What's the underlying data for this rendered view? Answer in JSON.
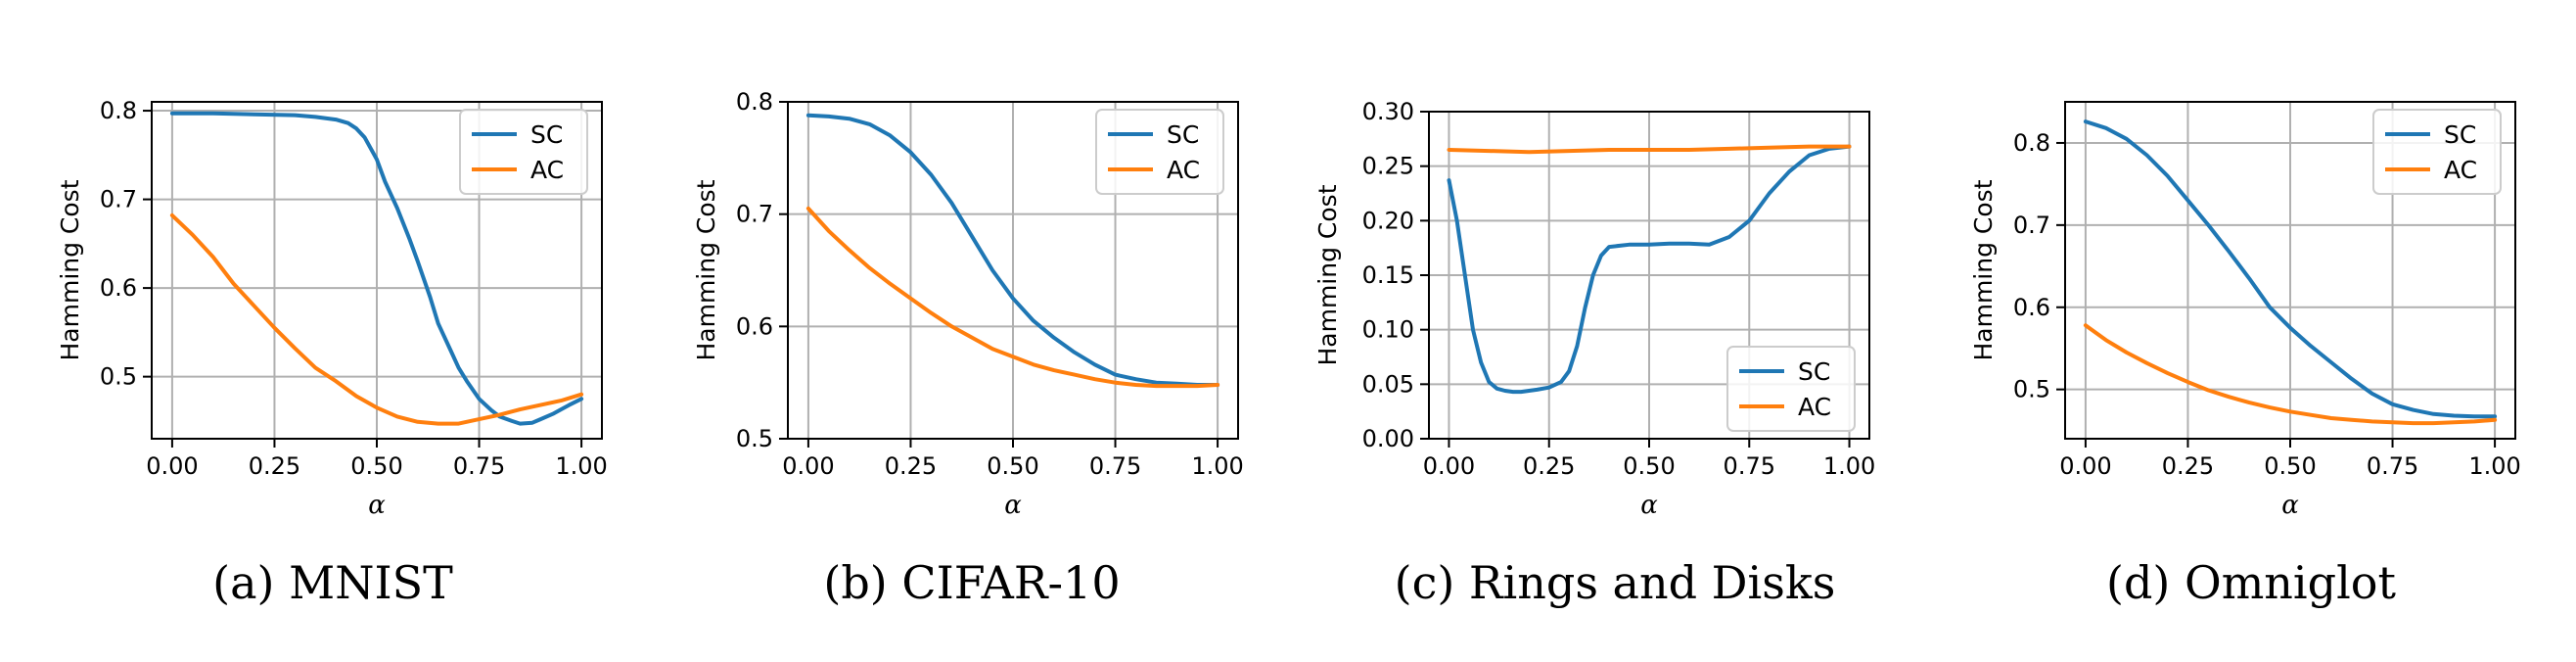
{
  "chart_data": [
    {
      "type": "line",
      "caption": "(a) MNIST",
      "xlabel": "α",
      "ylabel": "Hamming Cost",
      "xlim": [
        -0.05,
        1.05
      ],
      "ylim": [
        0.43,
        0.81
      ],
      "xticks": [
        0.0,
        0.25,
        0.5,
        0.75,
        1.0
      ],
      "xtick_labels": [
        "0.00",
        "0.25",
        "0.50",
        "0.75",
        "1.00"
      ],
      "yticks": [
        0.5,
        0.6,
        0.7,
        0.8
      ],
      "ytick_labels": [
        "0.5",
        "0.6",
        "0.7",
        "0.8"
      ],
      "grid": true,
      "legend": "upper right",
      "series": [
        {
          "name": "SC",
          "color": "#1f77b4",
          "x": [
            0,
            0.1,
            0.2,
            0.3,
            0.35,
            0.4,
            0.43,
            0.45,
            0.47,
            0.5,
            0.52,
            0.55,
            0.58,
            0.6,
            0.63,
            0.65,
            0.68,
            0.7,
            0.72,
            0.75,
            0.78,
            0.8,
            0.83,
            0.85,
            0.88,
            0.9,
            0.93,
            0.95,
            0.97,
            1.0
          ],
          "y": [
            0.797,
            0.797,
            0.796,
            0.795,
            0.793,
            0.79,
            0.786,
            0.78,
            0.77,
            0.745,
            0.72,
            0.69,
            0.655,
            0.63,
            0.59,
            0.56,
            0.53,
            0.51,
            0.495,
            0.475,
            0.462,
            0.455,
            0.45,
            0.447,
            0.448,
            0.452,
            0.458,
            0.463,
            0.468,
            0.475
          ]
        },
        {
          "name": "AC",
          "color": "#ff7f0e",
          "x": [
            0,
            0.05,
            0.1,
            0.15,
            0.2,
            0.25,
            0.3,
            0.35,
            0.4,
            0.45,
            0.5,
            0.55,
            0.6,
            0.65,
            0.7,
            0.75,
            0.8,
            0.85,
            0.9,
            0.95,
            1.0
          ],
          "y": [
            0.682,
            0.66,
            0.635,
            0.605,
            0.58,
            0.555,
            0.532,
            0.51,
            0.495,
            0.478,
            0.465,
            0.455,
            0.449,
            0.447,
            0.447,
            0.452,
            0.457,
            0.463,
            0.468,
            0.473,
            0.48
          ]
        }
      ]
    },
    {
      "type": "line",
      "caption": "(b) CIFAR-10",
      "xlabel": "α",
      "ylabel": "Hamming Cost",
      "xlim": [
        -0.05,
        1.05
      ],
      "ylim": [
        0.5,
        0.8
      ],
      "xticks": [
        0.0,
        0.25,
        0.5,
        0.75,
        1.0
      ],
      "xtick_labels": [
        "0.00",
        "0.25",
        "0.50",
        "0.75",
        "1.00"
      ],
      "yticks": [
        0.5,
        0.6,
        0.7,
        0.8
      ],
      "ytick_labels": [
        "0.5",
        "0.6",
        "0.7",
        "0.8"
      ],
      "grid": true,
      "legend": "upper right",
      "series": [
        {
          "name": "SC",
          "color": "#1f77b4",
          "x": [
            0,
            0.05,
            0.1,
            0.15,
            0.2,
            0.25,
            0.3,
            0.35,
            0.4,
            0.45,
            0.5,
            0.55,
            0.6,
            0.65,
            0.7,
            0.75,
            0.8,
            0.85,
            0.9,
            0.95,
            1.0
          ],
          "y": [
            0.788,
            0.787,
            0.785,
            0.78,
            0.77,
            0.755,
            0.735,
            0.71,
            0.68,
            0.65,
            0.625,
            0.605,
            0.59,
            0.577,
            0.566,
            0.557,
            0.553,
            0.55,
            0.549,
            0.548,
            0.548
          ]
        },
        {
          "name": "AC",
          "color": "#ff7f0e",
          "x": [
            0,
            0.05,
            0.1,
            0.15,
            0.2,
            0.25,
            0.3,
            0.35,
            0.4,
            0.45,
            0.5,
            0.55,
            0.6,
            0.65,
            0.7,
            0.75,
            0.8,
            0.85,
            0.9,
            0.95,
            1.0
          ],
          "y": [
            0.705,
            0.685,
            0.668,
            0.652,
            0.638,
            0.625,
            0.612,
            0.6,
            0.59,
            0.58,
            0.573,
            0.566,
            0.561,
            0.557,
            0.553,
            0.55,
            0.548,
            0.547,
            0.547,
            0.547,
            0.548
          ]
        }
      ]
    },
    {
      "type": "line",
      "caption": "(c) Rings and Disks",
      "xlabel": "α",
      "ylabel": "Hamming Cost",
      "xlim": [
        -0.05,
        1.05
      ],
      "ylim": [
        0.0,
        0.3
      ],
      "xticks": [
        0.0,
        0.25,
        0.5,
        0.75,
        1.0
      ],
      "xtick_labels": [
        "0.00",
        "0.25",
        "0.50",
        "0.75",
        "1.00"
      ],
      "yticks": [
        0.0,
        0.05,
        0.1,
        0.15,
        0.2,
        0.25,
        0.3
      ],
      "ytick_labels": [
        "0.00",
        "0.05",
        "0.10",
        "0.15",
        "0.20",
        "0.25",
        "0.30"
      ],
      "grid": true,
      "legend": "lower right",
      "series": [
        {
          "name": "SC",
          "color": "#1f77b4",
          "x": [
            0,
            0.02,
            0.04,
            0.06,
            0.08,
            0.1,
            0.12,
            0.14,
            0.16,
            0.18,
            0.2,
            0.22,
            0.25,
            0.28,
            0.3,
            0.32,
            0.34,
            0.36,
            0.38,
            0.4,
            0.45,
            0.5,
            0.55,
            0.6,
            0.65,
            0.7,
            0.75,
            0.8,
            0.85,
            0.9,
            0.95,
            1.0
          ],
          "y": [
            0.237,
            0.2,
            0.15,
            0.1,
            0.07,
            0.052,
            0.046,
            0.044,
            0.043,
            0.043,
            0.044,
            0.045,
            0.047,
            0.052,
            0.062,
            0.085,
            0.12,
            0.15,
            0.168,
            0.176,
            0.178,
            0.178,
            0.179,
            0.179,
            0.178,
            0.185,
            0.2,
            0.225,
            0.245,
            0.26,
            0.266,
            0.268
          ]
        },
        {
          "name": "AC",
          "color": "#ff7f0e",
          "x": [
            0,
            0.1,
            0.2,
            0.3,
            0.4,
            0.5,
            0.6,
            0.7,
            0.8,
            0.9,
            1.0
          ],
          "y": [
            0.265,
            0.264,
            0.263,
            0.264,
            0.265,
            0.265,
            0.265,
            0.266,
            0.267,
            0.268,
            0.268
          ]
        }
      ]
    },
    {
      "type": "line",
      "caption": "(d) Omniglot",
      "xlabel": "α",
      "ylabel": "Hamming Cost",
      "xlim": [
        -0.05,
        1.05
      ],
      "ylim": [
        0.44,
        0.85
      ],
      "xticks": [
        0.0,
        0.25,
        0.5,
        0.75,
        1.0
      ],
      "xtick_labels": [
        "0.00",
        "0.25",
        "0.50",
        "0.75",
        "1.00"
      ],
      "yticks": [
        0.5,
        0.6,
        0.7,
        0.8
      ],
      "ytick_labels": [
        "0.5",
        "0.6",
        "0.7",
        "0.8"
      ],
      "grid": true,
      "legend": "upper right",
      "series": [
        {
          "name": "SC",
          "color": "#1f77b4",
          "x": [
            0,
            0.05,
            0.1,
            0.15,
            0.2,
            0.25,
            0.3,
            0.35,
            0.4,
            0.45,
            0.5,
            0.55,
            0.6,
            0.65,
            0.7,
            0.75,
            0.8,
            0.85,
            0.9,
            0.95,
            1.0
          ],
          "y": [
            0.826,
            0.818,
            0.805,
            0.785,
            0.76,
            0.73,
            0.7,
            0.668,
            0.635,
            0.6,
            0.575,
            0.553,
            0.533,
            0.513,
            0.495,
            0.482,
            0.475,
            0.47,
            0.468,
            0.467,
            0.467
          ]
        },
        {
          "name": "AC",
          "color": "#ff7f0e",
          "x": [
            0,
            0.05,
            0.1,
            0.15,
            0.2,
            0.25,
            0.3,
            0.35,
            0.4,
            0.45,
            0.5,
            0.55,
            0.6,
            0.65,
            0.7,
            0.75,
            0.8,
            0.85,
            0.9,
            0.95,
            1.0
          ],
          "y": [
            0.578,
            0.56,
            0.545,
            0.532,
            0.52,
            0.509,
            0.499,
            0.491,
            0.484,
            0.478,
            0.473,
            0.469,
            0.465,
            0.463,
            0.461,
            0.46,
            0.459,
            0.459,
            0.46,
            0.461,
            0.463
          ]
        }
      ]
    }
  ]
}
